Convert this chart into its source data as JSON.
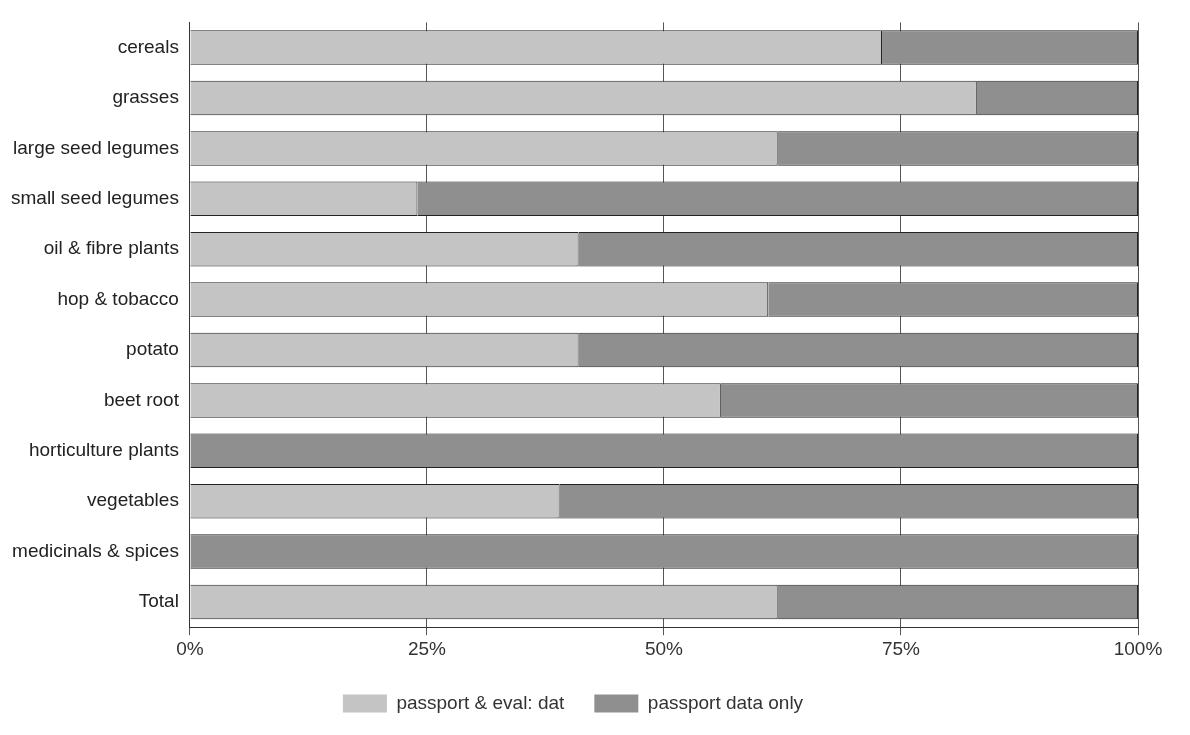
{
  "chart_data": {
    "type": "bar",
    "orientation": "horizontal",
    "stacked": true,
    "categories": [
      "cereals",
      "grasses",
      "large seed legumes",
      "small seed legumes",
      "oil & fibre plants",
      "hop & tobacco",
      "potato",
      "beet root",
      "horticulture plants",
      "vegetables",
      "medicinals & spices",
      "Total"
    ],
    "series": [
      {
        "name": "passport & eval: dat",
        "color": "#c4c4c4",
        "values": [
          73,
          83,
          62,
          24,
          41,
          61,
          41,
          56,
          0,
          39,
          0,
          62
        ]
      },
      {
        "name": "passport data only",
        "color": "#8f8f8f",
        "values": [
          27,
          17,
          38,
          76,
          59,
          39,
          59,
          44,
          100,
          61,
          100,
          38
        ]
      }
    ],
    "xlim": [
      0,
      100
    ],
    "xticks": [
      {
        "value": 0,
        "label": "0%"
      },
      {
        "value": 25,
        "label": "25%"
      },
      {
        "value": 50,
        "label": "50%"
      },
      {
        "value": 75,
        "label": "75%"
      },
      {
        "value": 100,
        "label": "100%"
      }
    ],
    "grid": "x",
    "legend": "bottom"
  }
}
